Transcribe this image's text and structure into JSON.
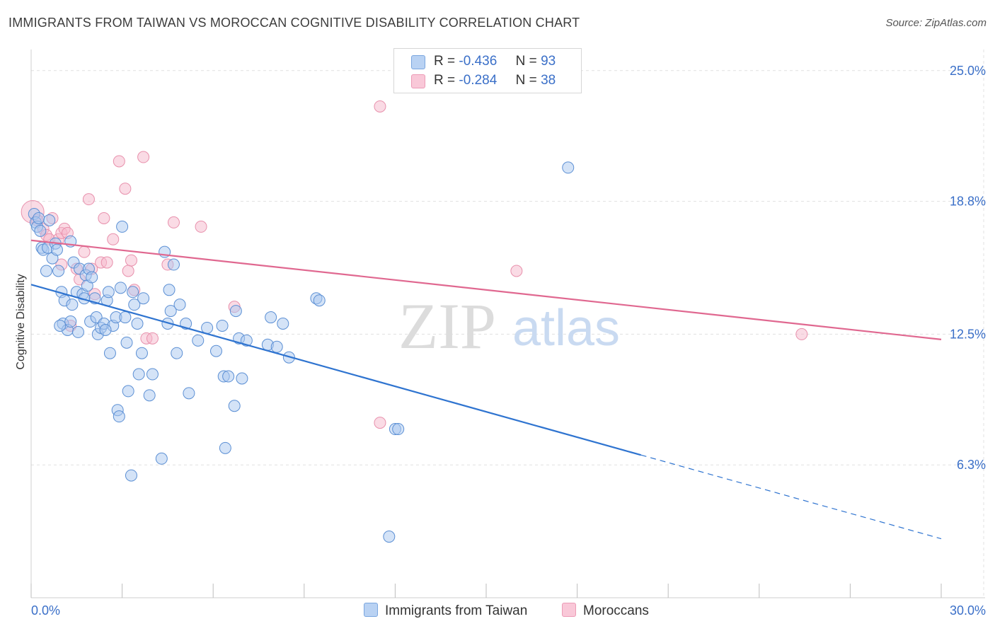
{
  "header": {
    "title": "IMMIGRANTS FROM TAIWAN VS MOROCCAN COGNITIVE DISABILITY CORRELATION CHART",
    "source": "Source: ZipAtlas.com"
  },
  "watermark": {
    "zip": "ZIP",
    "atlas": "atlas"
  },
  "legend_stats": [
    {
      "r_label": "R =",
      "r_value": "-0.436",
      "n_label": "N =",
      "n_value": "93"
    },
    {
      "r_label": "R =",
      "r_value": "-0.284",
      "n_label": "N =",
      "n_value": "38"
    }
  ],
  "chart_data": {
    "type": "scatter",
    "title": "IMMIGRANTS FROM TAIWAN VS MOROCCAN COGNITIVE DISABILITY CORRELATION CHART",
    "xlabel": "",
    "ylabel": "Cognitive Disability",
    "xlim": [
      0,
      30
    ],
    "ylim": [
      0,
      26
    ],
    "x_tick_labels": [
      "0.0%",
      "30.0%"
    ],
    "y_ticks": [
      6.3,
      12.5,
      18.8,
      25.0
    ],
    "y_tick_labels": [
      "6.3%",
      "12.5%",
      "18.8%",
      "25.0%"
    ],
    "grid": true,
    "legend_position": "top-center",
    "colors": {
      "taiwan_fill": "#a9c8ef",
      "taiwan_stroke": "#5b8fd4",
      "taiwan_line": "#2f74d0",
      "moroccan_fill": "#f6b8cc",
      "moroccan_stroke": "#e890ac",
      "moroccan_line": "#e06890",
      "axis_text": "#3a6fc8",
      "grid": "#e0e0e0"
    },
    "series": [
      {
        "name": "Immigrants from Taiwan",
        "trend": {
          "x0": 0,
          "y0": 14.85,
          "x1": 20.1,
          "y1": 6.77,
          "dash_to_x": 30,
          "dash_to_y": 2.8
        },
        "points": [
          [
            0.1,
            18.2
          ],
          [
            0.15,
            17.8
          ],
          [
            0.2,
            17.6
          ],
          [
            0.25,
            18.0
          ],
          [
            0.3,
            17.4
          ],
          [
            0.35,
            16.6
          ],
          [
            0.4,
            16.5
          ],
          [
            0.5,
            15.5
          ],
          [
            0.55,
            16.6
          ],
          [
            0.6,
            17.9
          ],
          [
            0.7,
            16.1
          ],
          [
            0.8,
            16.8
          ],
          [
            0.85,
            16.5
          ],
          [
            0.9,
            15.5
          ],
          [
            1.0,
            14.5
          ],
          [
            1.05,
            13.0
          ],
          [
            1.1,
            14.1
          ],
          [
            1.2,
            12.7
          ],
          [
            1.3,
            13.1
          ],
          [
            1.35,
            13.9
          ],
          [
            1.4,
            15.9
          ],
          [
            1.5,
            14.5
          ],
          [
            1.55,
            12.6
          ],
          [
            1.6,
            15.6
          ],
          [
            1.7,
            14.4
          ],
          [
            1.75,
            14.2
          ],
          [
            1.8,
            15.3
          ],
          [
            1.85,
            14.8
          ],
          [
            1.9,
            15.6
          ],
          [
            1.95,
            13.1
          ],
          [
            2.0,
            15.2
          ],
          [
            2.1,
            14.2
          ],
          [
            2.15,
            13.3
          ],
          [
            2.2,
            12.5
          ],
          [
            2.3,
            12.8
          ],
          [
            2.4,
            13.0
          ],
          [
            2.5,
            14.1
          ],
          [
            2.55,
            14.5
          ],
          [
            2.6,
            11.6
          ],
          [
            2.7,
            12.9
          ],
          [
            2.8,
            13.3
          ],
          [
            2.85,
            8.9
          ],
          [
            2.9,
            8.6
          ],
          [
            2.95,
            14.7
          ],
          [
            3.0,
            17.6
          ],
          [
            3.1,
            13.3
          ],
          [
            3.15,
            12.1
          ],
          [
            3.2,
            9.8
          ],
          [
            3.3,
            5.8
          ],
          [
            3.35,
            14.5
          ],
          [
            3.4,
            13.9
          ],
          [
            3.5,
            13.0
          ],
          [
            3.55,
            10.6
          ],
          [
            3.65,
            11.6
          ],
          [
            3.7,
            14.2
          ],
          [
            3.9,
            9.6
          ],
          [
            4.0,
            10.6
          ],
          [
            4.3,
            6.6
          ],
          [
            4.4,
            16.4
          ],
          [
            4.5,
            13.0
          ],
          [
            4.55,
            14.6
          ],
          [
            4.6,
            13.6
          ],
          [
            4.7,
            15.8
          ],
          [
            4.8,
            11.6
          ],
          [
            4.9,
            13.9
          ],
          [
            5.1,
            13.0
          ],
          [
            5.2,
            9.7
          ],
          [
            5.5,
            12.2
          ],
          [
            5.8,
            12.8
          ],
          [
            6.1,
            11.7
          ],
          [
            6.3,
            12.9
          ],
          [
            6.35,
            10.5
          ],
          [
            6.4,
            7.1
          ],
          [
            6.5,
            10.5
          ],
          [
            6.7,
            9.1
          ],
          [
            6.75,
            13.6
          ],
          [
            6.85,
            12.3
          ],
          [
            6.95,
            10.4
          ],
          [
            7.1,
            12.2
          ],
          [
            7.8,
            12.0
          ],
          [
            7.9,
            13.3
          ],
          [
            8.1,
            11.9
          ],
          [
            8.3,
            13.0
          ],
          [
            8.5,
            11.4
          ],
          [
            9.4,
            14.2
          ],
          [
            9.5,
            14.1
          ],
          [
            12.0,
            8.0
          ],
          [
            12.1,
            8.0
          ],
          [
            11.8,
            2.9
          ],
          [
            17.7,
            20.4
          ],
          [
            1.3,
            16.9
          ],
          [
            0.95,
            12.9
          ],
          [
            2.45,
            12.7
          ]
        ]
      },
      {
        "name": "Moroccans",
        "trend": {
          "x0": 0,
          "y0": 16.95,
          "x1": 30,
          "y1": 12.25
        },
        "points": [
          [
            0.05,
            18.3
          ],
          [
            0.2,
            17.9
          ],
          [
            0.4,
            17.5
          ],
          [
            0.5,
            17.2
          ],
          [
            0.6,
            17.0
          ],
          [
            0.7,
            18.0
          ],
          [
            0.9,
            17.0
          ],
          [
            1.0,
            17.3
          ],
          [
            1.1,
            17.5
          ],
          [
            1.2,
            17.3
          ],
          [
            1.3,
            12.9
          ],
          [
            1.5,
            15.6
          ],
          [
            1.6,
            15.1
          ],
          [
            1.75,
            16.4
          ],
          [
            1.9,
            18.9
          ],
          [
            2.0,
            15.6
          ],
          [
            2.1,
            14.4
          ],
          [
            2.3,
            15.9
          ],
          [
            2.4,
            18.0
          ],
          [
            2.5,
            15.9
          ],
          [
            2.7,
            17.0
          ],
          [
            2.9,
            20.7
          ],
          [
            3.1,
            19.4
          ],
          [
            3.2,
            15.5
          ],
          [
            3.3,
            16.0
          ],
          [
            3.4,
            14.6
          ],
          [
            3.7,
            20.9
          ],
          [
            3.8,
            12.3
          ],
          [
            4.0,
            12.3
          ],
          [
            4.5,
            15.8
          ],
          [
            4.7,
            17.8
          ],
          [
            5.6,
            17.6
          ],
          [
            6.7,
            13.8
          ],
          [
            11.5,
            23.3
          ],
          [
            11.5,
            8.3
          ],
          [
            16.0,
            15.5
          ],
          [
            25.4,
            12.5
          ],
          [
            1.0,
            15.8
          ]
        ]
      }
    ]
  }
}
